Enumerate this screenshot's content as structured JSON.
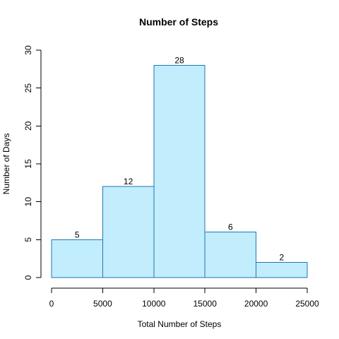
{
  "chart_data": {
    "type": "bar",
    "title": "Number of Steps",
    "xlabel": "Total Number of Steps",
    "ylabel": "Number of Days",
    "bins": [
      {
        "x0": 0,
        "x1": 5000,
        "count": 5
      },
      {
        "x0": 5000,
        "x1": 10000,
        "count": 12
      },
      {
        "x0": 10000,
        "x1": 15000,
        "count": 28
      },
      {
        "x0": 15000,
        "x1": 20000,
        "count": 6
      },
      {
        "x0": 20000,
        "x1": 25000,
        "count": 2
      }
    ],
    "data_labels": [
      "5",
      "12",
      "28",
      "6",
      "2"
    ],
    "x_ticks": [
      0,
      5000,
      10000,
      15000,
      20000,
      25000
    ],
    "x_tick_labels": [
      "0",
      "5000",
      "10000",
      "15000",
      "20000",
      "25000"
    ],
    "y_ticks": [
      0,
      5,
      10,
      15,
      20,
      25,
      30
    ],
    "y_tick_labels": [
      "0",
      "5",
      "10",
      "15",
      "20",
      "25",
      "30"
    ],
    "xlim": [
      0,
      25000
    ],
    "ylim": [
      0,
      30
    ],
    "grid": false,
    "legend": "none",
    "colors": {
      "bar_fill": "#c2edfc",
      "bar_stroke": "#1f76b4",
      "axis": "#000000"
    }
  }
}
